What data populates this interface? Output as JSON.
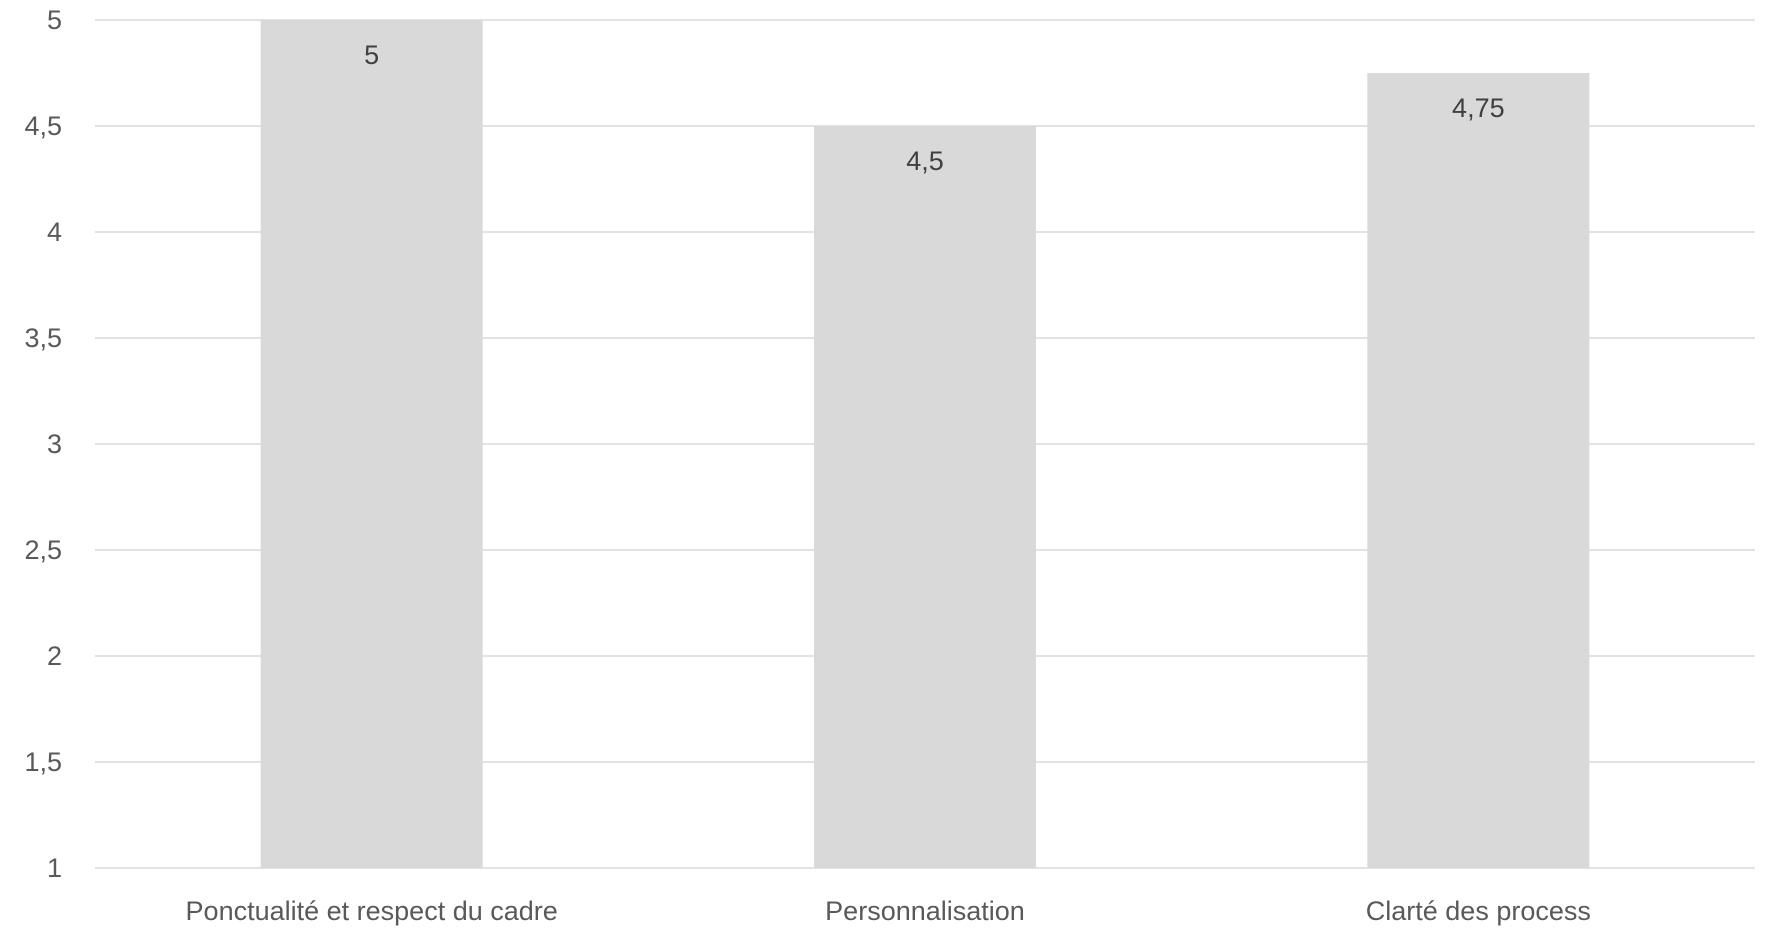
{
  "chart_data": {
    "type": "bar",
    "categories": [
      "Ponctualité et respect du cadre",
      "Personnalisation",
      "Clarté des process"
    ],
    "values": [
      5,
      4.5,
      4.75
    ],
    "value_labels": [
      "5",
      "4,5",
      "4,75"
    ],
    "ylim": [
      1,
      5
    ],
    "yticks": [
      1,
      1.5,
      2,
      2.5,
      3,
      3.5,
      4,
      4.5,
      5
    ],
    "ytick_labels": [
      "1",
      "1,5",
      "2",
      "2,5",
      "3",
      "3,5",
      "4",
      "4,5",
      "5"
    ],
    "bar_color": "#d9d9d9",
    "grid": true
  }
}
